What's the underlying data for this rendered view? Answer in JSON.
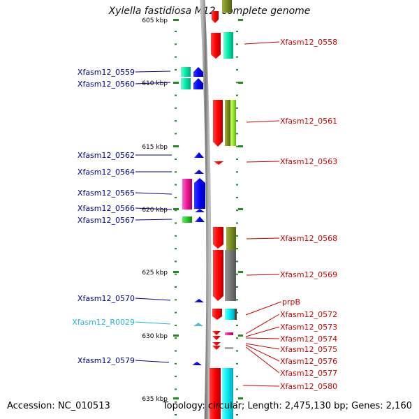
{
  "title": "Xylella fastidiosa M12, complete genome",
  "footer": {
    "accession": "Accession: NC_010513",
    "topology": "Topology: circular; Length: 2,475,130 bp; Genes: 2,160"
  },
  "ticks": [
    {
      "label": "605 kbp"
    },
    {
      "label": "610 kbp"
    },
    {
      "label": "615 kbp"
    },
    {
      "label": "620 kbp"
    },
    {
      "label": "625 kbp"
    },
    {
      "label": "630 kbp"
    },
    {
      "label": "635 kbp"
    }
  ],
  "colors": {
    "forward_label": "#00008b",
    "reverse_label": "#cc0000",
    "rna_label": "#20b8d8",
    "tick": "#228b22",
    "backbone": "#888888"
  },
  "labels_left": [
    {
      "id": "Xfasm12_0559",
      "text": "Xfasm12_0559",
      "color": "#00008b"
    },
    {
      "id": "Xfasm12_0560",
      "text": "Xfasm12_0560",
      "color": "#00008b"
    },
    {
      "id": "Xfasm12_0562",
      "text": "Xfasm12_0562",
      "color": "#00008b"
    },
    {
      "id": "Xfasm12_0564",
      "text": "Xfasm12_0564",
      "color": "#00008b"
    },
    {
      "id": "Xfasm12_0565",
      "text": "Xfasm12_0565",
      "color": "#00008b"
    },
    {
      "id": "Xfasm12_0566",
      "text": "Xfasm12_0566",
      "color": "#00008b"
    },
    {
      "id": "Xfasm12_0567",
      "text": "Xfasm12_0567",
      "color": "#00008b"
    },
    {
      "id": "Xfasm12_0570",
      "text": "Xfasm12_0570",
      "color": "#00008b"
    },
    {
      "id": "Xfasm12_R0029",
      "text": "Xfasm12_R0029",
      "color": "#20b8d8"
    },
    {
      "id": "Xfasm12_0579",
      "text": "Xfasm12_0579",
      "color": "#00008b"
    }
  ],
  "labels_right": [
    {
      "id": "Xfasm12_0558",
      "text": "Xfasm12_0558"
    },
    {
      "id": "Xfasm12_0561",
      "text": "Xfasm12_0561"
    },
    {
      "id": "Xfasm12_0563",
      "text": "Xfasm12_0563"
    },
    {
      "id": "Xfasm12_0568",
      "text": "Xfasm12_0568"
    },
    {
      "id": "Xfasm12_0569",
      "text": "Xfasm12_0569"
    },
    {
      "id": "prpB",
      "text": "prpB"
    },
    {
      "id": "Xfasm12_0572",
      "text": "Xfasm12_0572"
    },
    {
      "id": "Xfasm12_0573",
      "text": "Xfasm12_0573"
    },
    {
      "id": "Xfasm12_0574",
      "text": "Xfasm12_0574"
    },
    {
      "id": "Xfasm12_0575",
      "text": "Xfasm12_0575"
    },
    {
      "id": "Xfasm12_0576",
      "text": "Xfasm12_0576"
    },
    {
      "id": "Xfasm12_0577",
      "text": "Xfasm12_0577"
    },
    {
      "id": "Xfasm12_0580",
      "text": "Xfasm12_0580"
    }
  ]
}
